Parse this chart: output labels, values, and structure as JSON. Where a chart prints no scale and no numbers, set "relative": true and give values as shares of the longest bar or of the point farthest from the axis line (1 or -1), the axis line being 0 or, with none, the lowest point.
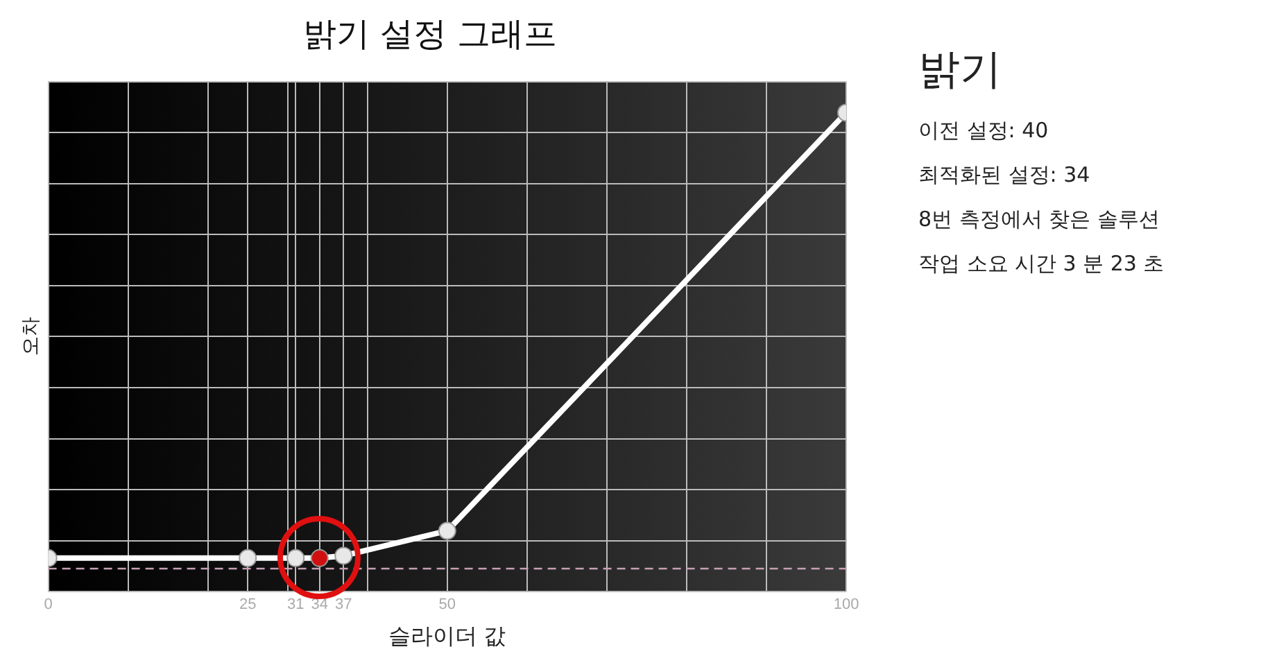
{
  "chart_data": {
    "type": "line",
    "title": "밝기 설정 그래프",
    "xlabel": "슬라이더 값",
    "ylabel": "오차",
    "relative": true,
    "x": [
      0,
      25,
      31,
      34,
      37,
      50,
      100
    ],
    "series": [
      {
        "color": "#ffffff",
        "colors": [
          "#e8e8e8",
          "#e8e8e8",
          "#e8e8e8",
          "#d01010",
          "#e8e8e8",
          "#e8e8e8",
          "#e8e8e8"
        ],
        "values": [
          0.07,
          0.07,
          0.07,
          0.07,
          0.075,
          0.127,
          1
        ]
      }
    ],
    "xlim": [
      0,
      100
    ],
    "xticks": [
      0,
      {
        "value": 10,
        "label": null
      },
      {
        "value": 20,
        "label": null
      },
      25,
      {
        "value": 30,
        "label": null
      },
      31,
      34,
      37,
      {
        "value": 40,
        "label": null
      },
      50,
      {
        "value": 60,
        "label": null
      },
      {
        "value": 70,
        "label": null
      },
      {
        "value": 80,
        "label": null
      },
      {
        "value": 90,
        "label": null
      },
      100
    ],
    "ref_lines": [
      {
        "axis": "y",
        "value": 0.048,
        "color": "#c8a0b4",
        "line_style": "dashed"
      }
    ],
    "grid": true,
    "marker": "circle",
    "line_style": "solid",
    "legend": false,
    "annotations": [
      "밝기",
      "이전 설정: 40",
      "최적화된 설정: 34",
      "8번 측정에서 찾은 솔루션",
      "작업 소요 시간 3 분 23 초"
    ]
  }
}
